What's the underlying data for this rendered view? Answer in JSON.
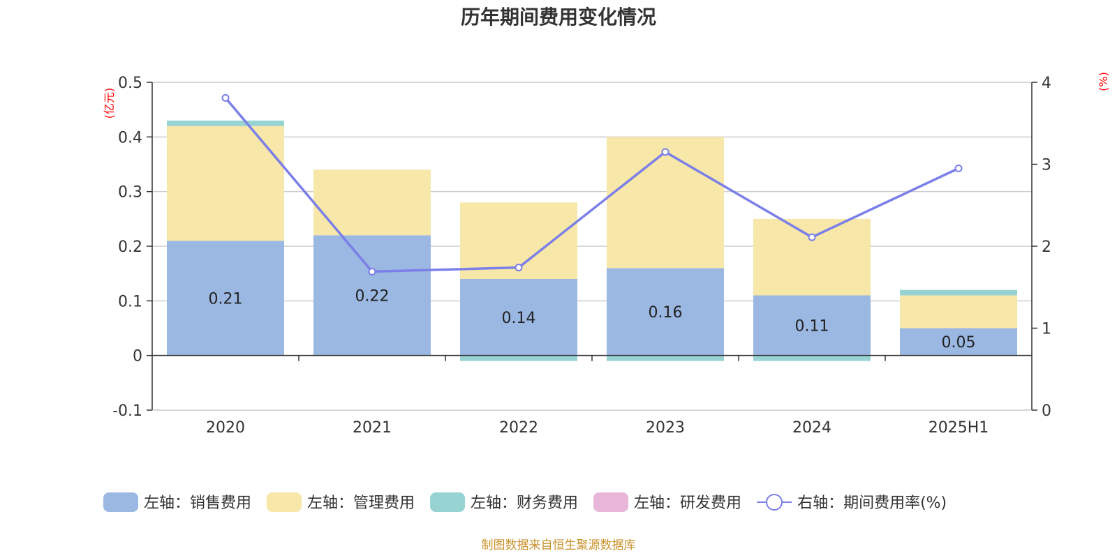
{
  "chart_data": {
    "type": "bar",
    "title": "历年期间费用变化情况",
    "categories": [
      "2020",
      "2021",
      "2022",
      "2023",
      "2024",
      "2025H1"
    ],
    "stacked": true,
    "left_axis": {
      "unit": "(亿元)",
      "ylim": [
        -0.1,
        0.5
      ],
      "ticks": [
        -0.1,
        0,
        0.1,
        0.2,
        0.3,
        0.4,
        0.5
      ],
      "tick_labels": [
        "-0.1",
        "0",
        "0.1",
        "0.2",
        "0.3",
        "0.4",
        "0.5"
      ]
    },
    "right_axis": {
      "unit": "(%)",
      "ylim": [
        0,
        4
      ],
      "ticks": [
        0,
        1,
        2,
        3,
        4
      ],
      "tick_labels": [
        "0",
        "1",
        "2",
        "3",
        "4"
      ]
    },
    "series": [
      {
        "name": "左轴：销售费用",
        "axis": "left",
        "color": "#9bb8e2",
        "values": [
          0.21,
          0.22,
          0.14,
          0.16,
          0.11,
          0.05
        ],
        "labels": [
          "0.21",
          "0.22",
          "0.14",
          "0.16",
          "0.11",
          "0.05"
        ]
      },
      {
        "name": "左轴：管理费用",
        "axis": "left",
        "color": "#f7e7a8",
        "values": [
          0.21,
          0.12,
          0.14,
          0.24,
          0.14,
          0.06
        ]
      },
      {
        "name": "左轴：财务费用",
        "axis": "left",
        "color": "#97d3d3",
        "values": [
          0.01,
          0.0,
          -0.01,
          -0.01,
          -0.01,
          0.01
        ]
      },
      {
        "name": "左轴：研发费用",
        "axis": "left",
        "color": "#e8b6d8",
        "values": [
          0,
          0,
          0,
          0,
          0,
          0
        ]
      },
      {
        "name": "右轴：期间费用率(%)",
        "axis": "right",
        "type": "line",
        "color": "#7b7fe8",
        "values": [
          3.81,
          1.69,
          1.74,
          3.15,
          2.11,
          2.95
        ]
      }
    ],
    "grid": true,
    "legend_position": "bottom"
  },
  "footer": {
    "source": "制图数据来自恒生聚源数据库"
  }
}
